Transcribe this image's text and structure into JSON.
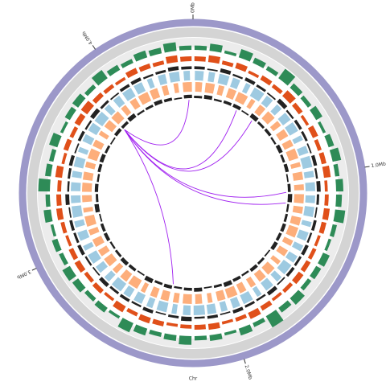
{
  "chart_data": {
    "type": "circos",
    "xlabel": "Chr",
    "xlim": [
      0,
      4.42
    ],
    "ideogram_color": "#9c98c9",
    "xticks": [
      {
        "value": 0,
        "label": "0Mb"
      },
      {
        "value": 1,
        "label": "1.0Mb"
      },
      {
        "value": 2,
        "label": "2.0Mb"
      },
      {
        "value": 3,
        "label": "3.0Mb"
      },
      {
        "value": 4,
        "label": "4.0Mb"
      }
    ],
    "tracks": [
      {
        "style": "histogram",
        "color": "#2e8b57",
        "values": [
          0.3,
          0.5,
          0.2,
          0.6,
          0.4,
          0.3,
          0.8,
          0.4,
          0.3,
          0.5,
          0.2,
          0.4,
          0.6,
          0.3,
          0.5,
          0.4,
          0.7,
          0.3,
          0.2,
          0.5,
          0.4,
          0.3,
          0.6,
          0.4,
          0.9,
          0.3,
          0.5,
          0.2,
          0.4,
          0.3,
          0.6,
          0.4,
          0.3,
          0.5,
          0.7,
          0.2,
          0.4,
          0.3,
          0.5,
          0.6,
          0.3,
          0.4,
          0.2,
          0.5,
          0.3,
          0.8,
          0.4,
          0.3,
          0.6,
          0.2,
          0.4,
          0.5,
          0.3,
          0.7,
          0.4,
          0.3,
          0.5,
          0.4,
          0.6,
          0.3
        ]
      },
      {
        "style": "histogram",
        "color": "#e0501a",
        "values": [
          0.5,
          0.7,
          0.4,
          0.6,
          0.3,
          0.5,
          0.4,
          0.8,
          0.5,
          0.3,
          0.6,
          0.4,
          0.5,
          0.7,
          0.3,
          0.4,
          0.6,
          0.5,
          0.3,
          0.4,
          0.5,
          0.6,
          0.4,
          0.3,
          0.5,
          0.7,
          0.4,
          0.3,
          0.6,
          0.5,
          0.4,
          0.3,
          0.5,
          0.6,
          0.4,
          0.7,
          0.3,
          0.5,
          0.4,
          0.6,
          0.5,
          0.3,
          0.4,
          0.6,
          0.5,
          0.4,
          0.7,
          0.3,
          0.5,
          0.4,
          0.6,
          0.8,
          0.5,
          0.4,
          0.3,
          0.6,
          0.5,
          0.4,
          0.7,
          0.5
        ]
      },
      {
        "style": "histogram",
        "color": "#222222",
        "values": [
          0.6,
          0.3,
          0.8,
          0.4,
          0.7,
          0.5,
          0.3,
          0.9,
          0.4,
          0.6,
          0.5,
          0.3,
          0.7,
          0.4,
          0.8,
          0.5,
          0.3,
          0.6,
          0.4,
          0.7,
          0.5,
          0.6,
          0.3,
          0.8,
          0.4,
          0.5,
          0.7,
          0.3,
          0.6,
          0.4,
          0.9,
          0.5,
          0.3,
          0.7,
          0.4,
          0.6,
          0.5,
          0.8,
          0.3,
          0.4,
          0.7,
          0.5,
          0.6,
          0.3,
          0.8,
          0.4,
          0.5,
          0.7,
          0.3,
          0.6,
          0.4,
          0.9,
          0.5,
          0.3,
          0.6,
          0.7,
          0.4,
          0.5,
          0.8,
          0.6
        ]
      },
      {
        "style": "blocks",
        "color": "#9ecae1",
        "values": [
          0.7,
          0.5,
          0.8,
          0.6,
          0.4,
          0.9,
          0.6,
          0.5,
          0.7,
          0.8,
          0.4,
          0.6,
          0.9,
          0.5,
          0.7,
          0.6,
          0.8,
          0.4,
          0.7,
          0.5,
          0.6,
          0.9,
          0.5,
          0.7,
          0.4,
          0.8,
          0.6,
          0.5,
          0.7,
          0.9,
          0.6,
          0.4,
          0.8,
          0.5,
          0.7,
          0.6,
          0.9,
          0.5,
          0.6,
          0.8,
          0.4,
          0.7,
          0.5,
          0.9,
          0.6,
          0.7,
          0.5,
          0.8,
          0.4,
          0.6,
          0.7,
          0.9,
          0.5,
          0.6,
          0.8,
          0.7,
          0.4,
          0.6,
          0.8,
          0.5
        ]
      },
      {
        "style": "blocks",
        "color": "#fdae7b",
        "values": [
          0.6,
          0.8,
          0.5,
          0.7,
          0.9,
          0.4,
          0.6,
          0.8,
          0.5,
          0.7,
          0.6,
          0.9,
          0.4,
          0.7,
          0.5,
          0.8,
          0.6,
          0.7,
          0.9,
          0.5,
          0.6,
          0.4,
          0.8,
          0.7,
          0.5,
          0.6,
          0.9,
          0.7,
          0.4,
          0.6,
          0.8,
          0.5,
          0.7,
          0.6,
          0.4,
          0.9,
          0.7,
          0.5,
          0.8,
          0.6,
          0.7,
          0.5,
          0.9,
          0.4,
          0.6,
          0.8,
          0.7,
          0.5,
          0.9,
          0.6,
          0.4,
          0.7,
          0.8,
          0.5,
          0.6,
          0.9,
          0.7,
          0.5,
          0.4,
          0.8
        ]
      },
      {
        "style": "histogram",
        "color": "#222222",
        "values": [
          0.5,
          0.8,
          0.4,
          0.6,
          0.7,
          0.3,
          0.9,
          0.5,
          0.6,
          0.4,
          0.8,
          0.5,
          0.7,
          0.3,
          0.6,
          0.9,
          0.4,
          0.5,
          0.7,
          0.6,
          0.8,
          0.3,
          0.5,
          0.7,
          0.4,
          0.6,
          0.9,
          0.5,
          0.3,
          0.8,
          0.6,
          0.4,
          0.7,
          0.5,
          0.9,
          0.3,
          0.6,
          0.8,
          0.5,
          0.4,
          0.7,
          0.6,
          0.3,
          0.9,
          0.5,
          0.7,
          0.4,
          0.6,
          0.8,
          0.5,
          0.3,
          0.7,
          0.6,
          0.9,
          0.4,
          0.5,
          0.8,
          0.6,
          0.3,
          0.7
        ]
      }
    ],
    "link_color": "#a020f0",
    "links": [
      [
        3.84,
        4.39
      ],
      [
        3.84,
        0.34
      ],
      [
        3.84,
        0.48
      ],
      [
        3.84,
        1.1
      ],
      [
        3.84,
        1.18
      ],
      [
        3.84,
        2.36
      ]
    ]
  }
}
